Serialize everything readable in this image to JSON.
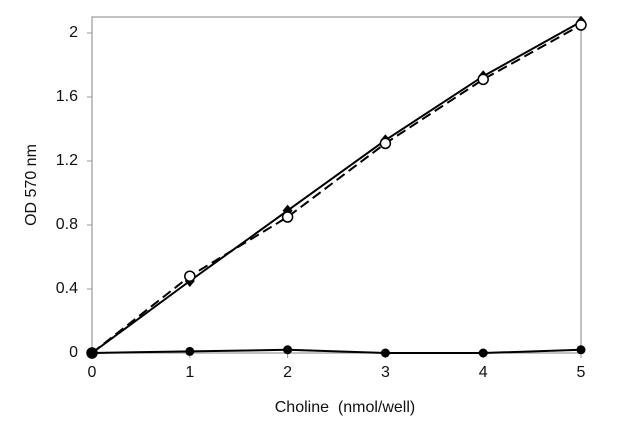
{
  "chart_data": {
    "type": "line",
    "x_label": "Choline  (nmol/well)",
    "y_label": "OD 570 nm",
    "x": [
      0,
      1,
      2,
      3,
      4,
      5
    ],
    "series": [
      {
        "color": "#000000",
        "line_style": "solid",
        "marker": "diamond",
        "values": [
          0,
          0.45,
          0.89,
          1.33,
          1.73,
          2.07
        ]
      },
      {
        "color": "#000000",
        "line_style": "dashed",
        "marker": "open-circle",
        "values": [
          0,
          0.48,
          0.85,
          1.31,
          1.71,
          2.05
        ]
      },
      {
        "color": "#000000",
        "line_style": "solid",
        "marker": "circle",
        "values": [
          0,
          0.01,
          0.02,
          0,
          0,
          0.02
        ]
      }
    ],
    "xlim": [
      0,
      5
    ],
    "xticks": [
      0,
      1,
      2,
      3,
      4,
      5
    ],
    "ylim": [
      0,
      2.1
    ],
    "yticks": [
      0,
      0.4,
      0.8,
      1.2,
      1.6,
      2
    ],
    "grid": false
  }
}
